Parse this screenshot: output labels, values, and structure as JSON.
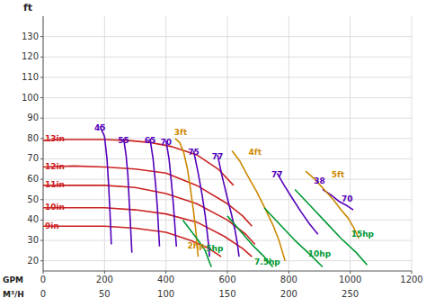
{
  "chart_data": {
    "type": "line",
    "ylabel": "ft",
    "xlabel": "GPM",
    "x2label": "M³/H",
    "xlim": [
      0,
      1200
    ],
    "ylim": [
      15,
      140
    ],
    "xticks": [
      0,
      200,
      400,
      600,
      800,
      1000,
      1200
    ],
    "yticks": [
      20,
      30,
      40,
      50,
      60,
      70,
      80,
      90,
      100,
      110,
      120,
      130
    ],
    "x2ticks": [
      {
        "value": 0,
        "label": "0"
      },
      {
        "value": 200,
        "label": "50"
      },
      {
        "value": 400,
        "label": "100"
      },
      {
        "value": 600,
        "label": "150"
      },
      {
        "value": 800,
        "label": "200"
      },
      {
        "value": 1000,
        "label": "250"
      }
    ],
    "grid": true,
    "series": [
      {
        "color": "#cc2222",
        "x": [
          0,
          50,
          100,
          150,
          200,
          280,
          350,
          420,
          500,
          570,
          620
        ],
        "values": [
          79,
          79.5,
          79.5,
          79.5,
          79.5,
          79,
          78,
          76,
          72,
          65,
          57
        ]
      },
      {
        "color": "#cc2222",
        "x": [
          0,
          100,
          200,
          300,
          400,
          500,
          600,
          650,
          680
        ],
        "values": [
          66,
          66.5,
          66,
          65,
          63,
          57,
          48,
          42,
          37
        ]
      },
      {
        "color": "#cc2222",
        "x": [
          0,
          100,
          200,
          300,
          400,
          500,
          600,
          660,
          690
        ],
        "values": [
          57,
          57,
          57,
          56,
          53,
          48,
          40,
          33,
          28
        ]
      },
      {
        "color": "#cc2222",
        "x": [
          0,
          100,
          200,
          300,
          400,
          500,
          590,
          650,
          680
        ],
        "values": [
          46,
          46,
          46,
          45,
          43,
          39,
          32,
          26,
          22
        ]
      },
      {
        "color": "#cc2222",
        "x": [
          0,
          100,
          200,
          300,
          400,
          480,
          540,
          580
        ],
        "values": [
          37,
          37,
          37,
          36,
          34,
          30,
          26,
          22
        ]
      },
      {
        "color": "#5500bb",
        "x": [
          185,
          200,
          208,
          213,
          217,
          220,
          222
        ],
        "values": [
          86,
          81,
          70,
          58,
          46,
          36,
          28
        ]
      },
      {
        "color": "#5500bb",
        "x": [
          262,
          270,
          276,
          280,
          284,
          287,
          289
        ],
        "values": [
          80,
          72,
          62,
          50,
          39,
          30,
          24
        ]
      },
      {
        "color": "#5500bb",
        "x": [
          348,
          358,
          366,
          372,
          376,
          379
        ],
        "values": [
          80,
          70,
          58,
          46,
          35,
          27
        ]
      },
      {
        "color": "#5500bb",
        "x": [
          400,
          410,
          418,
          425,
          430,
          434
        ],
        "values": [
          79,
          70,
          58,
          46,
          35,
          27
        ]
      },
      {
        "color": "#5500bb",
        "x": [
          490,
          505,
          518,
          528,
          535,
          540,
          542
        ],
        "values": [
          74,
          63,
          52,
          42,
          33,
          26,
          22
        ]
      },
      {
        "color": "#5500bb",
        "x": [
          568,
          582,
          598,
          613,
          625,
          633,
          638
        ],
        "values": [
          72,
          62,
          52,
          43,
          35,
          28,
          22
        ]
      },
      {
        "color": "#5500bb",
        "x": [
          762,
          785,
          810,
          840,
          868,
          895
        ],
        "values": [
          63,
          57,
          51,
          44,
          38,
          33
        ]
      },
      {
        "color": "#5500bb",
        "x": [
          910,
          940,
          965,
          990,
          1010
        ],
        "values": [
          55,
          52,
          49,
          47,
          45
        ]
      },
      {
        "color": "#cc8800",
        "x": [
          430,
          445,
          458,
          470,
          480,
          490,
          497,
          502,
          505
        ],
        "values": [
          80,
          78,
          73,
          65,
          55,
          44,
          35,
          27,
          22
        ]
      },
      {
        "color": "#cc8800",
        "x": [
          615,
          640,
          665,
          695,
          725,
          750,
          768,
          780,
          788
        ],
        "values": [
          74,
          69,
          62,
          54,
          45,
          37,
          30,
          24,
          20
        ]
      },
      {
        "color": "#cc8800",
        "x": [
          855,
          885,
          915,
          945,
          970,
          993,
          1012,
          1028
        ],
        "values": [
          64,
          60,
          55,
          50,
          45,
          41,
          36,
          31
        ]
      },
      {
        "color": "#009933",
        "x": [
          455,
          480,
          505,
          528,
          540,
          548
        ],
        "values": [
          40,
          35,
          30,
          25,
          20,
          17
        ]
      },
      {
        "color": "#009933",
        "x": [
          600,
          640,
          680,
          720,
          748
        ],
        "values": [
          42,
          35,
          28,
          22,
          17
        ]
      },
      {
        "color": "#009933",
        "x": [
          720,
          770,
          820,
          870,
          910
        ],
        "values": [
          46,
          38,
          30,
          23,
          17
        ]
      },
      {
        "color": "#009933",
        "x": [
          820,
          870,
          920,
          970,
          1020,
          1055
        ],
        "values": [
          55,
          47,
          39,
          31,
          24,
          18
        ]
      }
    ],
    "annotations": [
      {
        "text": "13in",
        "x": 2,
        "y": 79.5,
        "color": "#cc2222"
      },
      {
        "text": "12in",
        "x": 2,
        "y": 66,
        "color": "#cc2222"
      },
      {
        "text": "11in",
        "x": 2,
        "y": 57,
        "color": "#cc2222"
      },
      {
        "text": "10in",
        "x": 2,
        "y": 46,
        "color": "#cc2222"
      },
      {
        "text": "9in",
        "x": 2,
        "y": 37,
        "color": "#cc2222"
      },
      {
        "text": "45",
        "x": 185,
        "y": 85,
        "color": "#5500bb"
      },
      {
        "text": "55",
        "x": 262,
        "y": 79,
        "color": "#5500bb"
      },
      {
        "text": "65",
        "x": 348,
        "y": 79,
        "color": "#5500bb"
      },
      {
        "text": "70",
        "x": 400,
        "y": 78,
        "color": "#5500bb"
      },
      {
        "text": "75",
        "x": 490,
        "y": 73,
        "color": "#5500bb"
      },
      {
        "text": "77",
        "x": 568,
        "y": 71,
        "color": "#5500bb"
      },
      {
        "text": "77",
        "x": 762,
        "y": 62,
        "color": "#5500bb"
      },
      {
        "text": "70",
        "x": 990,
        "y": 50,
        "color": "#5500bb"
      },
      {
        "text": "38",
        "x": 900,
        "y": 59,
        "color": "#5500bb"
      },
      {
        "text": "3ft",
        "x": 448,
        "y": 83,
        "color": "#cc8800"
      },
      {
        "text": "4ft",
        "x": 690,
        "y": 73,
        "color": "#cc8800"
      },
      {
        "text": "5ft",
        "x": 960,
        "y": 62,
        "color": "#cc8800"
      },
      {
        "text": "2hp",
        "x": 498,
        "y": 27,
        "color": "#cc8800"
      },
      {
        "text": "5hp",
        "x": 520,
        "y": 26,
        "color": "#009933"
      },
      {
        "text": "7.5hp",
        "x": 730,
        "y": 19,
        "color": "#009933"
      },
      {
        "text": "10hp",
        "x": 900,
        "y": 23,
        "color": "#009933"
      },
      {
        "text": "15hp",
        "x": 1040,
        "y": 33,
        "color": "#009933"
      }
    ]
  }
}
